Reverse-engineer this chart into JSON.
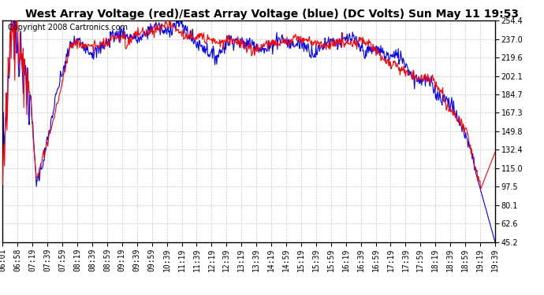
{
  "title": "West Array Voltage (red)/East Array Voltage (blue) (DC Volts) Sun May 11 19:53",
  "copyright": "Copyright 2008 Cartronics.com",
  "yticks": [
    254.4,
    237.0,
    219.6,
    202.1,
    184.7,
    167.3,
    149.8,
    132.4,
    115.0,
    97.5,
    80.1,
    62.6,
    45.2
  ],
  "ymin": 45.2,
  "ymax": 254.4,
  "xtick_labels": [
    "06:01",
    "06:58",
    "07:19",
    "07:39",
    "07:59",
    "08:19",
    "08:39",
    "08:59",
    "09:19",
    "09:39",
    "09:59",
    "10:39",
    "11:19",
    "11:39",
    "12:19",
    "12:39",
    "13:19",
    "13:39",
    "14:19",
    "14:59",
    "15:19",
    "15:39",
    "15:59",
    "16:19",
    "16:39",
    "16:59",
    "17:19",
    "17:39",
    "17:59",
    "18:19",
    "18:39",
    "18:59",
    "19:19",
    "19:39"
  ],
  "red_color": "#ff0000",
  "blue_color": "#0000ff",
  "bg_color": "#ffffff",
  "grid_color": "#c8c8c8",
  "title_fontsize": 10,
  "copyright_fontsize": 7,
  "tick_fontsize": 7,
  "linewidth": 0.8
}
